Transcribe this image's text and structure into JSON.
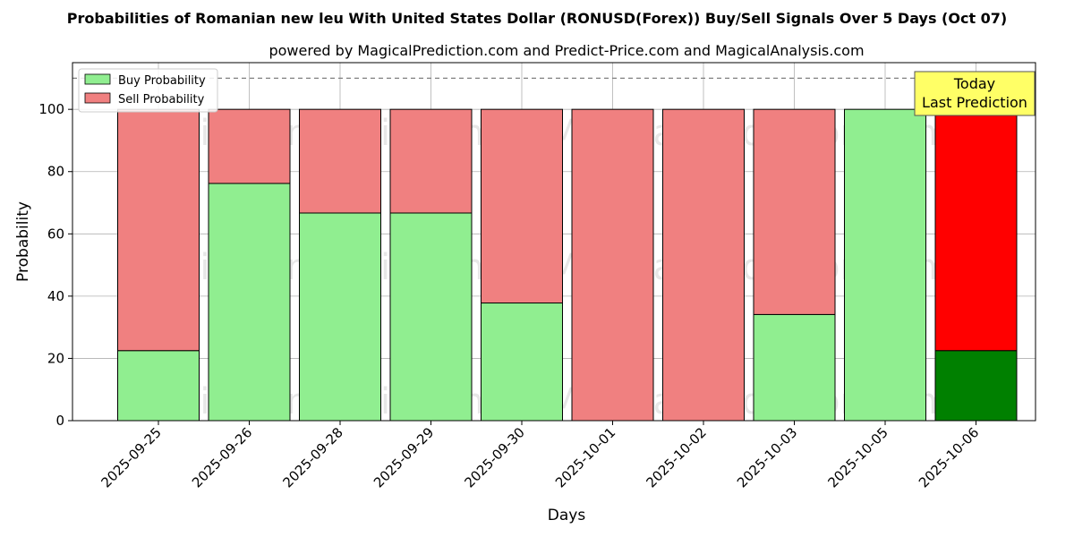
{
  "chart_data": {
    "type": "bar",
    "stacked": true,
    "title": "Probabilities of Romanian new leu With United States Dollar (RONUSD(Forex)) Buy/Sell Signals Over 5 Days (Oct 07)",
    "subtitle": "powered by MagicalPrediction.com and Predict-Price.com and MagicalAnalysis.com",
    "xlabel": "Days",
    "ylabel": "Probability",
    "ylim": [
      0,
      115
    ],
    "yticks": [
      0,
      20,
      40,
      60,
      80,
      100
    ],
    "grid": true,
    "legend_position": "top-left",
    "categories": [
      "2025-09-25",
      "2025-09-26",
      "2025-09-28",
      "2025-09-29",
      "2025-09-30",
      "2025-10-01",
      "2025-10-02",
      "2025-10-03",
      "2025-10-05",
      "2025-10-06"
    ],
    "series": [
      {
        "name": "Buy Probability",
        "color": "#90ee90",
        "values": [
          22.5,
          76.2,
          66.7,
          66.7,
          37.8,
          0,
          0,
          34.1,
          100,
          22.5
        ]
      },
      {
        "name": "Sell Probability",
        "color": "#f08080",
        "values": [
          77.5,
          23.8,
          33.3,
          33.3,
          62.2,
          100,
          100,
          65.9,
          0,
          77.5
        ]
      }
    ],
    "highlight": {
      "index": 9,
      "buy_color": "#008000",
      "sell_color": "#ff0000"
    },
    "reference_line": {
      "value": 110,
      "style": "dashed",
      "color": "#808080"
    },
    "annotation": {
      "lines": [
        "Today",
        "Last Prediction"
      ],
      "background": "#ffff66"
    },
    "watermarks": [
      "MagicalAnalysis.com",
      "MagicalPrediction.com"
    ]
  }
}
